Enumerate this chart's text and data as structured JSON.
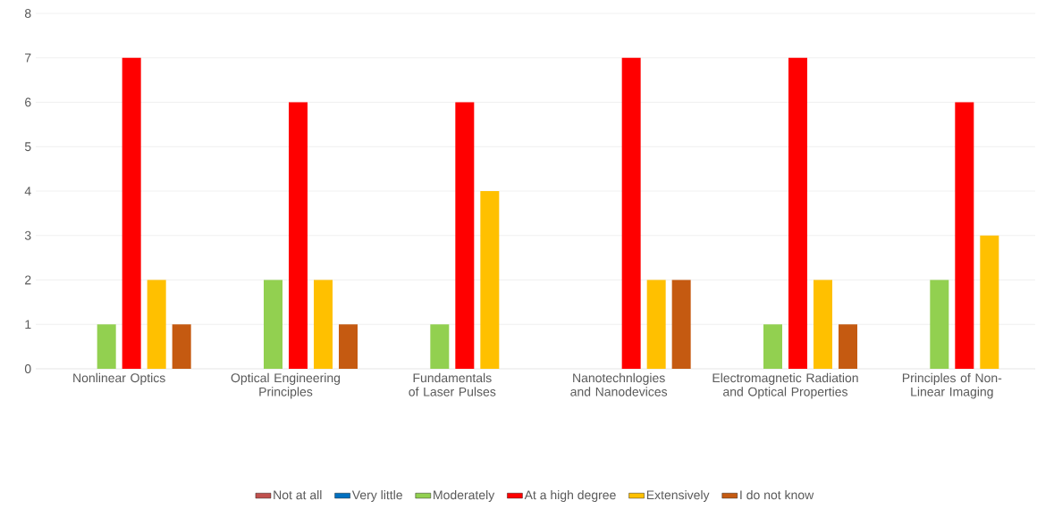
{
  "chart_data": {
    "type": "bar",
    "categories": [
      "Nonlinear Optics",
      "Optical Engineering Principles",
      "Fundamentals of Laser Pulses",
      "Nanotechnlogies and Nanodevices",
      "Electromagnetic Radiation and Optical Properties",
      "Principles of Non-Linear Imaging"
    ],
    "series": [
      {
        "name": "Not at all",
        "color": "#c0504d",
        "values": [
          0,
          0,
          0,
          0,
          0,
          0
        ]
      },
      {
        "name": "Very little",
        "color": "#0070c0",
        "values": [
          0,
          0,
          0,
          0,
          0,
          0
        ]
      },
      {
        "name": "Moderately",
        "color": "#92d050",
        "values": [
          1,
          2,
          1,
          0,
          1,
          2
        ]
      },
      {
        "name": "At a high degree",
        "color": "#ff0000",
        "values": [
          7,
          6,
          6,
          7,
          7,
          6
        ]
      },
      {
        "name": "Extensively",
        "color": "#ffc000",
        "values": [
          2,
          2,
          4,
          2,
          2,
          3
        ]
      },
      {
        "name": "I do not know",
        "color": "#c55a11",
        "values": [
          1,
          1,
          0,
          2,
          1,
          0
        ]
      }
    ],
    "ylim": [
      0,
      8
    ],
    "yticks": [
      0,
      1,
      2,
      3,
      4,
      5,
      6,
      7,
      8
    ],
    "grid": "y",
    "legend": "bottom"
  }
}
